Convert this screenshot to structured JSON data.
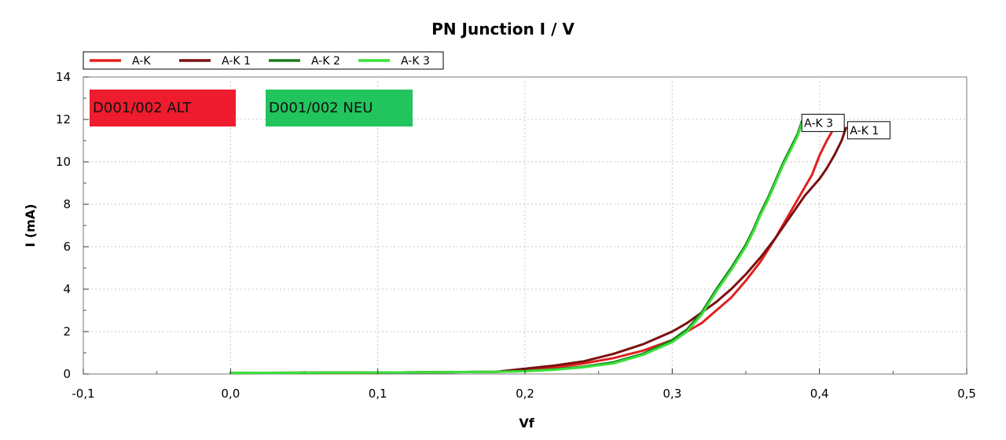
{
  "chart_data": {
    "type": "line",
    "title": "PN Junction I / V",
    "xlabel": "Vf",
    "ylabel": "I (mA)",
    "xlim": [
      -0.1,
      0.5
    ],
    "ylim": [
      0,
      14
    ],
    "xticks": [
      -0.1,
      0.0,
      0.1,
      0.2,
      0.3,
      0.4,
      0.5
    ],
    "xtick_labels": [
      "-0,1",
      "0,0",
      "0,1",
      "0,2",
      "0,3",
      "0,4",
      "0,5"
    ],
    "yticks": [
      0,
      2,
      4,
      6,
      8,
      10,
      12,
      14
    ],
    "ytick_labels": [
      "0",
      "2",
      "4",
      "6",
      "8",
      "10",
      "12",
      "14"
    ],
    "grid": true,
    "legend_position": "top-left",
    "series": [
      {
        "name": "A-K",
        "color": "#e02020",
        "x": [
          0.0,
          0.1,
          0.18,
          0.2,
          0.22,
          0.24,
          0.26,
          0.28,
          0.3,
          0.31,
          0.32,
          0.33,
          0.34,
          0.35,
          0.36,
          0.37,
          0.38,
          0.39,
          0.395,
          0.4,
          0.405,
          0.41
        ],
        "y": [
          0.05,
          0.07,
          0.1,
          0.18,
          0.3,
          0.5,
          0.75,
          1.1,
          1.6,
          2.0,
          2.4,
          3.0,
          3.6,
          4.4,
          5.3,
          6.4,
          7.6,
          8.8,
          9.4,
          10.3,
          11.0,
          11.6
        ]
      },
      {
        "name": "A-K 1",
        "color": "#7a1010",
        "x": [
          0.0,
          0.1,
          0.18,
          0.2,
          0.22,
          0.24,
          0.26,
          0.28,
          0.3,
          0.31,
          0.32,
          0.33,
          0.34,
          0.35,
          0.36,
          0.37,
          0.38,
          0.39,
          0.4,
          0.405,
          0.41,
          0.415,
          0.418
        ],
        "y": [
          0.05,
          0.07,
          0.1,
          0.25,
          0.4,
          0.6,
          0.95,
          1.4,
          2.0,
          2.4,
          2.9,
          3.4,
          4.0,
          4.7,
          5.5,
          6.4,
          7.4,
          8.4,
          9.2,
          9.7,
          10.3,
          11.0,
          11.6
        ]
      },
      {
        "name": "A-K 2",
        "color": "#1b7a1b",
        "x": [
          0.0,
          0.1,
          0.18,
          0.2,
          0.22,
          0.24,
          0.26,
          0.28,
          0.3,
          0.31,
          0.32,
          0.33,
          0.34,
          0.35,
          0.355,
          0.36,
          0.365,
          0.37,
          0.375,
          0.38,
          0.385,
          0.388
        ],
        "y": [
          0.05,
          0.07,
          0.1,
          0.14,
          0.22,
          0.35,
          0.55,
          0.95,
          1.6,
          2.1,
          2.9,
          4.0,
          5.0,
          6.1,
          6.8,
          7.6,
          8.3,
          9.1,
          9.9,
          10.6,
          11.3,
          11.9
        ]
      },
      {
        "name": "A-K 3",
        "color": "#3be03b",
        "x": [
          0.0,
          0.1,
          0.18,
          0.2,
          0.22,
          0.24,
          0.26,
          0.28,
          0.3,
          0.31,
          0.32,
          0.33,
          0.34,
          0.35,
          0.355,
          0.36,
          0.365,
          0.37,
          0.375,
          0.38,
          0.385,
          0.388
        ],
        "y": [
          0.05,
          0.07,
          0.1,
          0.13,
          0.2,
          0.32,
          0.5,
          0.9,
          1.5,
          2.0,
          2.8,
          3.9,
          4.9,
          6.0,
          6.7,
          7.5,
          8.2,
          9.0,
          9.8,
          10.5,
          11.2,
          11.8
        ]
      }
    ],
    "end_labels": [
      {
        "text": "A-K 3",
        "series": "A-K 3"
      },
      {
        "text": "A-K 1",
        "series": "A-K 1"
      }
    ],
    "annotations": [
      {
        "text": "D001/002 ALT",
        "background": "#ee1c2e"
      },
      {
        "text": "D001/002 NEU",
        "background": "#22c45e"
      }
    ]
  }
}
